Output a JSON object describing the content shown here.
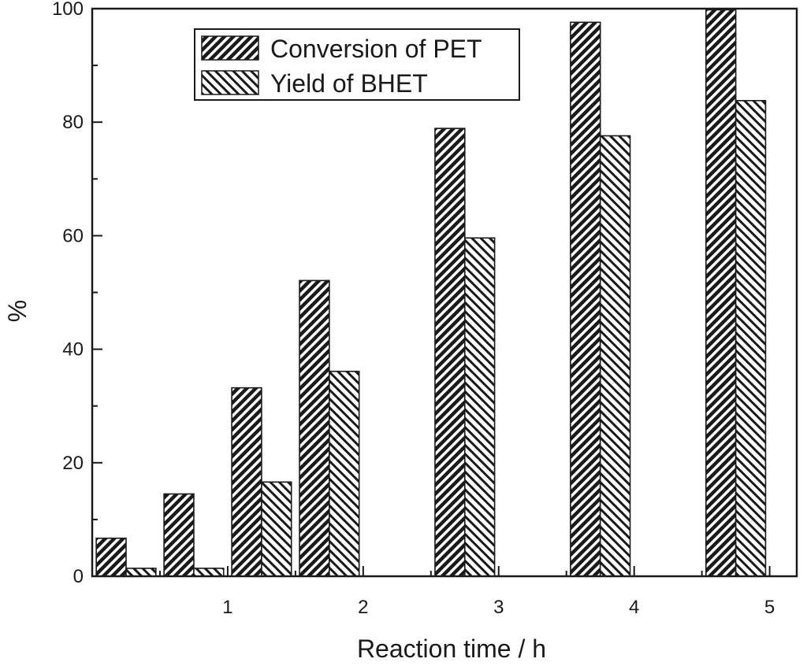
{
  "chart_data": {
    "type": "bar",
    "title": "",
    "xlabel": "Reaction time / h",
    "ylabel": "%",
    "xlim": [
      0,
      5.2
    ],
    "ylim": [
      0,
      100
    ],
    "x_ticks": [
      1,
      2,
      3,
      4,
      5
    ],
    "y_ticks": [
      0,
      20,
      40,
      60,
      80,
      100
    ],
    "x": [
      0.25,
      0.75,
      1.25,
      1.75,
      2.75,
      3.75,
      4.75
    ],
    "legend_position": "top-left",
    "series": [
      {
        "name": "Conversion of PET",
        "pattern": "dense-forward-hatch",
        "values": [
          6.7,
          14.5,
          33.2,
          52.1,
          78.9,
          97.6,
          99.8
        ]
      },
      {
        "name": "Yield of BHET",
        "pattern": "back-hatch",
        "values": [
          1.4,
          1.4,
          16.6,
          36.1,
          59.6,
          77.6,
          83.8
        ]
      }
    ]
  },
  "colors": {
    "ink": "#1a1a1a",
    "background": "#ffffff"
  }
}
